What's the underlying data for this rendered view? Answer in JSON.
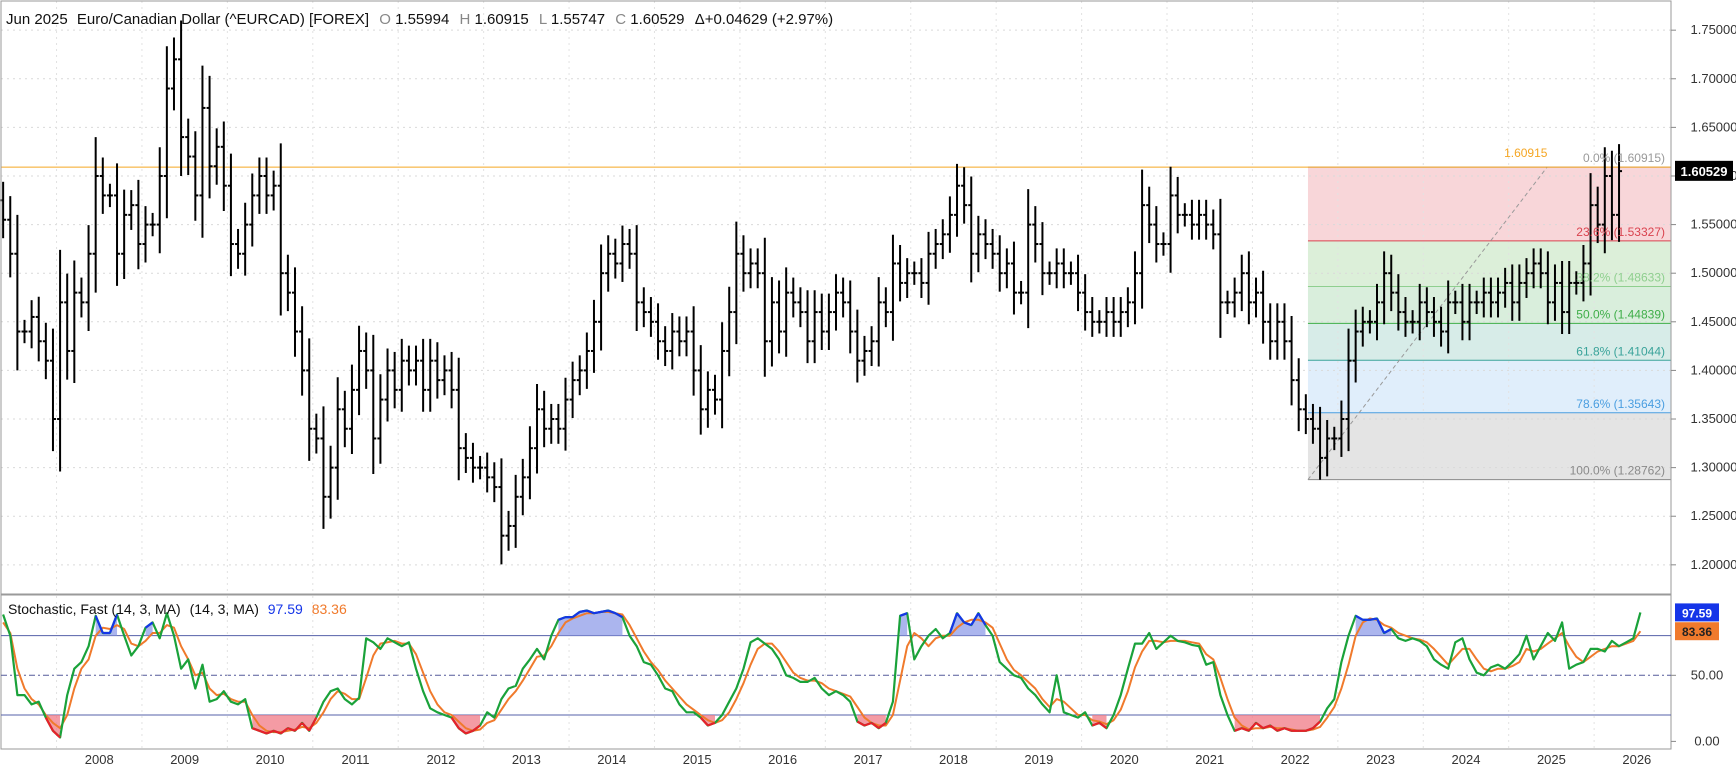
{
  "header": {
    "period": "Jun 2025",
    "instrument": "Euro/Canadian Dollar (^EURCAD) [FOREX]",
    "o_label": "O",
    "o_value": "1.55994",
    "h_label": "H",
    "h_value": "1.60915",
    "l_label": "L",
    "l_value": "1.55747",
    "c_label": "C",
    "c_value": "1.60529",
    "change": "Δ+0.04629 (+2.97%)"
  },
  "stochastic_header": {
    "title": "Stochastic, Fast (14, 3, MA)",
    "params": "(14, 3, MA)",
    "k_value": "97.59",
    "d_value": "83.36"
  },
  "colors": {
    "bars": "#000000",
    "k_line": "#1aa23a",
    "d_line": "#f07a2c",
    "overbought_fill": "#8f9ce8",
    "oversold_fill": "#f07a86",
    "high_line": "#f5a623",
    "blue_tag": "#1535e8",
    "orange_tag": "#f07a2c"
  },
  "chart_data": [
    {
      "type": "ohlc",
      "title": "Euro/Canadian Dollar (^EURCAD) [FOREX]",
      "period": "monthly",
      "ylim": [
        1.17,
        1.78
      ],
      "y_ticks": [
        "1.20000",
        "1.25000",
        "1.30000",
        "1.35000",
        "1.40000",
        "1.45000",
        "1.50000",
        "1.55000",
        "1.60000",
        "1.65000",
        "1.70000",
        "1.75000"
      ],
      "y_tick_values": [
        1.2,
        1.25,
        1.3,
        1.35,
        1.4,
        1.45,
        1.5,
        1.55,
        1.6,
        1.65,
        1.7,
        1.75
      ],
      "x_ticks": [
        "2008",
        "2009",
        "2010",
        "2011",
        "2012",
        "2013",
        "2014",
        "2015",
        "2016",
        "2017",
        "2018",
        "2019",
        "2020",
        "2021",
        "2022",
        "2023",
        "2024",
        "2025",
        "2026"
      ],
      "xlim": [
        2007.35,
        2026.9
      ],
      "last_close": "1.60529",
      "last_close_value": 1.60529,
      "high_line_value": 1.60915,
      "high_line_label": "1.60915",
      "fib_start": [
        2022.65,
        1.28762
      ],
      "fib_end": [
        2025.45,
        1.60915
      ],
      "fib_levels": [
        {
          "label": "0.0% (1.60915)",
          "value": 1.60915,
          "color": "#999999"
        },
        {
          "label": "23.6% (1.53327)",
          "value": 1.53327,
          "color": "#d9434f"
        },
        {
          "label": "38.2% (1.48633)",
          "value": 1.48633,
          "color": "#8fcf8f"
        },
        {
          "label": "50.0% (1.44839)",
          "value": 1.44839,
          "color": "#3fae49"
        },
        {
          "label": "61.8% (1.41044)",
          "value": 1.41044,
          "color": "#3aa39a"
        },
        {
          "label": "78.6% (1.35643)",
          "value": 1.35643,
          "color": "#4a9ee0"
        },
        {
          "label": "100.0% (1.28762)",
          "value": 1.28762,
          "color": "#8a8a8a"
        }
      ],
      "fib_zone_colors": [
        "#f8d6d9",
        "#dcefd9",
        "#d9eedc",
        "#d7ece8",
        "#e0eefb",
        "#e4e4e4"
      ],
      "closes": [
        1.555,
        1.52,
        1.44,
        1.44,
        1.455,
        1.43,
        1.41,
        1.35,
        1.47,
        1.42,
        1.48,
        1.47,
        1.52,
        1.6,
        1.58,
        1.58,
        1.52,
        1.56,
        1.57,
        1.53,
        1.55,
        1.55,
        1.6,
        1.69,
        1.72,
        1.64,
        1.62,
        1.58,
        1.67,
        1.61,
        1.63,
        1.59,
        1.53,
        1.52,
        1.55,
        1.58,
        1.6,
        1.58,
        1.59,
        1.5,
        1.48,
        1.44,
        1.4,
        1.34,
        1.33,
        1.27,
        1.3,
        1.36,
        1.34,
        1.38,
        1.42,
        1.4,
        1.33,
        1.37,
        1.4,
        1.38,
        1.41,
        1.4,
        1.41,
        1.38,
        1.41,
        1.39,
        1.4,
        1.38,
        1.32,
        1.31,
        1.3,
        1.3,
        1.29,
        1.28,
        1.23,
        1.24,
        1.27,
        1.29,
        1.32,
        1.36,
        1.34,
        1.35,
        1.34,
        1.37,
        1.39,
        1.4,
        1.42,
        1.45,
        1.5,
        1.52,
        1.51,
        1.53,
        1.52,
        1.47,
        1.46,
        1.45,
        1.43,
        1.42,
        1.44,
        1.43,
        1.44,
        1.4,
        1.36,
        1.38,
        1.37,
        1.42,
        1.46,
        1.52,
        1.5,
        1.51,
        1.5,
        1.43,
        1.47,
        1.44,
        1.48,
        1.47,
        1.46,
        1.43,
        1.46,
        1.44,
        1.46,
        1.48,
        1.47,
        1.44,
        1.41,
        1.42,
        1.43,
        1.47,
        1.46,
        1.51,
        1.49,
        1.5,
        1.5,
        1.49,
        1.52,
        1.53,
        1.54,
        1.56,
        1.59,
        1.57,
        1.52,
        1.54,
        1.53,
        1.52,
        1.5,
        1.51,
        1.48,
        1.48,
        1.55,
        1.53,
        1.5,
        1.5,
        1.51,
        1.5,
        1.5,
        1.48,
        1.46,
        1.45,
        1.45,
        1.46,
        1.45,
        1.46,
        1.47,
        1.5,
        1.57,
        1.55,
        1.53,
        1.53,
        1.58,
        1.56,
        1.56,
        1.55,
        1.56,
        1.55,
        1.54,
        1.47,
        1.47,
        1.48,
        1.5,
        1.47,
        1.48,
        1.45,
        1.43,
        1.45,
        1.43,
        1.39,
        1.36,
        1.35,
        1.34,
        1.31,
        1.33,
        1.33,
        1.35,
        1.41,
        1.44,
        1.45,
        1.45,
        1.47,
        1.5,
        1.48,
        1.46,
        1.45,
        1.45,
        1.47,
        1.46,
        1.45,
        1.44,
        1.47,
        1.47,
        1.45,
        1.47,
        1.47,
        1.48,
        1.47,
        1.48,
        1.49,
        1.47,
        1.49,
        1.5,
        1.51,
        1.5,
        1.47,
        1.49,
        1.46,
        1.49,
        1.49,
        1.51,
        1.57,
        1.55,
        1.6,
        1.56,
        1.605
      ]
    },
    {
      "type": "line",
      "title": "Stochastic, Fast (14, 3, MA)",
      "ylim": [
        -5,
        110
      ],
      "y_ticks": [
        "0.00",
        "50.00"
      ],
      "y_tick_values": [
        0,
        50
      ],
      "bands": [
        20,
        50,
        80
      ],
      "series": [
        {
          "name": "%K",
          "values": [
            96,
            80,
            35,
            35,
            28,
            30,
            18,
            8,
            3,
            35,
            55,
            60,
            72,
            95,
            82,
            82,
            96,
            80,
            65,
            72,
            86,
            90,
            78,
            97,
            80,
            55,
            62,
            40,
            58,
            30,
            32,
            38,
            30,
            28,
            32,
            10,
            8,
            6,
            8,
            6,
            10,
            8,
            14,
            8,
            18,
            30,
            38,
            40,
            32,
            28,
            33,
            78,
            75,
            70,
            78,
            75,
            72,
            75,
            55,
            38,
            25,
            22,
            20,
            18,
            10,
            6,
            8,
            12,
            22,
            18,
            32,
            40,
            42,
            55,
            62,
            70,
            62,
            80,
            92,
            94,
            94,
            98,
            99,
            97,
            98,
            99,
            97,
            94,
            80,
            72,
            60,
            58,
            50,
            40,
            38,
            28,
            22,
            22,
            18,
            12,
            14,
            20,
            30,
            40,
            55,
            75,
            78,
            74,
            70,
            62,
            50,
            48,
            45,
            45,
            48,
            40,
            35,
            38,
            35,
            30,
            15,
            12,
            14,
            10,
            14,
            30,
            95,
            97,
            62,
            72,
            80,
            85,
            78,
            82,
            97,
            90,
            88,
            97,
            88,
            80,
            60,
            55,
            50,
            48,
            40,
            35,
            28,
            22,
            50,
            22,
            20,
            18,
            22,
            12,
            14,
            10,
            20,
            35,
            55,
            74,
            74,
            82,
            70,
            75,
            80,
            76,
            75,
            73,
            72,
            58,
            60,
            35,
            20,
            8,
            10,
            8,
            14,
            10,
            12,
            8,
            10,
            8,
            8,
            8,
            10,
            15,
            25,
            32,
            60,
            80,
            95,
            92,
            92,
            93,
            82,
            85,
            78,
            76,
            78,
            76,
            72,
            62,
            58,
            55,
            75,
            78,
            62,
            52,
            50,
            56,
            58,
            55,
            60,
            66,
            80,
            62,
            72,
            82,
            76,
            90,
            55,
            58,
            60,
            70,
            70,
            68,
            76,
            72,
            75,
            78,
            97.59
          ]
        },
        {
          "name": "%D",
          "values": [
            90,
            82,
            55,
            40,
            32,
            28,
            20,
            14,
            10,
            20,
            40,
            55,
            62,
            80,
            86,
            85,
            88,
            85,
            74,
            72,
            76,
            82,
            82,
            88,
            86,
            72,
            62,
            50,
            52,
            40,
            35,
            36,
            32,
            30,
            30,
            20,
            12,
            8,
            7,
            7,
            8,
            9,
            11,
            10,
            14,
            22,
            32,
            38,
            36,
            32,
            32,
            48,
            65,
            74,
            75,
            76,
            74,
            74,
            66,
            52,
            38,
            28,
            22,
            20,
            15,
            10,
            8,
            9,
            14,
            16,
            24,
            32,
            38,
            46,
            55,
            64,
            65,
            72,
            82,
            90,
            93,
            95,
            97,
            97,
            98,
            98,
            97,
            96,
            88,
            78,
            68,
            60,
            54,
            46,
            40,
            34,
            28,
            24,
            20,
            16,
            14,
            16,
            22,
            32,
            44,
            58,
            70,
            74,
            74,
            68,
            60,
            52,
            48,
            46,
            46,
            44,
            40,
            38,
            36,
            34,
            26,
            18,
            14,
            12,
            12,
            20,
            46,
            72,
            82,
            78,
            72,
            78,
            80,
            80,
            86,
            90,
            92,
            92,
            90,
            86,
            74,
            62,
            54,
            50,
            45,
            40,
            32,
            26,
            32,
            30,
            25,
            20,
            20,
            16,
            15,
            13,
            16,
            24,
            38,
            56,
            68,
            76,
            76,
            75,
            76,
            76,
            76,
            75,
            74,
            66,
            62,
            48,
            32,
            18,
            12,
            9,
            10,
            10,
            11,
            10,
            10,
            9,
            8,
            8,
            9,
            11,
            18,
            26,
            40,
            58,
            80,
            90,
            93,
            92,
            88,
            86,
            82,
            80,
            78,
            77,
            75,
            70,
            64,
            58,
            64,
            70,
            70,
            62,
            55,
            53,
            55,
            55,
            57,
            60,
            70,
            68,
            70,
            74,
            78,
            82,
            72,
            64,
            60,
            64,
            68,
            70,
            72,
            72,
            74,
            76,
            83.36
          ]
        }
      ]
    }
  ]
}
